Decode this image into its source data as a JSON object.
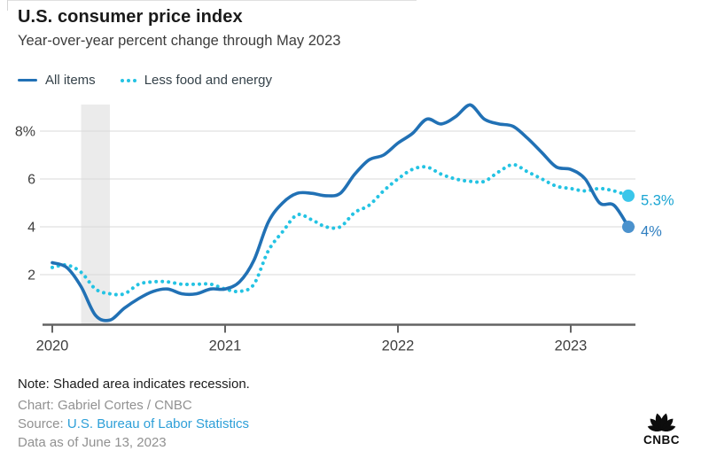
{
  "header": {
    "title": "U.S. consumer price index",
    "subtitle": "Year-over-year percent change through May 2023"
  },
  "legend": [
    {
      "label": "All items",
      "color": "#2171b5",
      "style": "solid"
    },
    {
      "label": "Less food and energy",
      "color": "#24c3e3",
      "style": "dotted"
    }
  ],
  "chart_data": {
    "type": "line",
    "x": [
      "2020-01",
      "2020-02",
      "2020-03",
      "2020-04",
      "2020-05",
      "2020-06",
      "2020-07",
      "2020-08",
      "2020-09",
      "2020-10",
      "2020-11",
      "2020-12",
      "2021-01",
      "2021-02",
      "2021-03",
      "2021-04",
      "2021-05",
      "2021-06",
      "2021-07",
      "2021-08",
      "2021-09",
      "2021-10",
      "2021-11",
      "2021-12",
      "2022-01",
      "2022-02",
      "2022-03",
      "2022-04",
      "2022-05",
      "2022-06",
      "2022-07",
      "2022-08",
      "2022-09",
      "2022-10",
      "2022-11",
      "2022-12",
      "2023-01",
      "2023-02",
      "2023-03",
      "2023-04",
      "2023-05"
    ],
    "x_tick_labels": [
      "2020",
      "2021",
      "2022",
      "2023"
    ],
    "x_tick_month_index": [
      0,
      12,
      24,
      36
    ],
    "series": [
      {
        "name": "All items",
        "color": "#2171b5",
        "style": "solid",
        "dot_color": "#4b92cd",
        "label_color": "#2e7ec0",
        "end_label": "4%",
        "values": [
          2.5,
          2.3,
          1.5,
          0.3,
          0.1,
          0.6,
          1.0,
          1.3,
          1.4,
          1.2,
          1.2,
          1.4,
          1.4,
          1.7,
          2.6,
          4.2,
          5.0,
          5.4,
          5.4,
          5.3,
          5.4,
          6.2,
          6.8,
          7.0,
          7.5,
          7.9,
          8.5,
          8.3,
          8.6,
          9.1,
          8.5,
          8.3,
          8.2,
          7.7,
          7.1,
          6.5,
          6.4,
          6.0,
          5.0,
          4.9,
          4.0
        ]
      },
      {
        "name": "Less food and energy",
        "color": "#24c3e3",
        "style": "dotted",
        "dot_color": "#3ac6ea",
        "label_color": "#1aa5d3",
        "end_label": "5.3%",
        "values": [
          2.3,
          2.4,
          2.1,
          1.4,
          1.2,
          1.2,
          1.6,
          1.7,
          1.7,
          1.6,
          1.6,
          1.6,
          1.4,
          1.3,
          1.6,
          3.0,
          3.8,
          4.5,
          4.3,
          4.0,
          4.0,
          4.6,
          4.9,
          5.5,
          6.0,
          6.4,
          6.5,
          6.2,
          6.0,
          5.9,
          5.9,
          6.3,
          6.6,
          6.3,
          6.0,
          5.7,
          5.6,
          5.5,
          5.6,
          5.5,
          5.3
        ]
      }
    ],
    "yticks": [
      2,
      4,
      6,
      8
    ],
    "ytick_labels": [
      "2",
      "4",
      "6",
      "8%"
    ],
    "ylim": [
      0,
      9.2
    ],
    "grid": "horizontal",
    "legend_position": "top-left",
    "recession_band_month_index": [
      2,
      4
    ],
    "band_color": "#ebebeb",
    "grid_color": "#dadada",
    "axis_color": "#636363",
    "tick_label_color": "#3f3f3f"
  },
  "footer": {
    "note": "Note: Shaded area indicates recession.",
    "chart_credit": "Chart: Gabriel Cortes / CNBC",
    "source_label": "Source: ",
    "source_link": "U.S. Bureau of Labor Statistics",
    "data_as_of": "Data as of June 13, 2023"
  },
  "logo": {
    "text": "CNBC"
  }
}
